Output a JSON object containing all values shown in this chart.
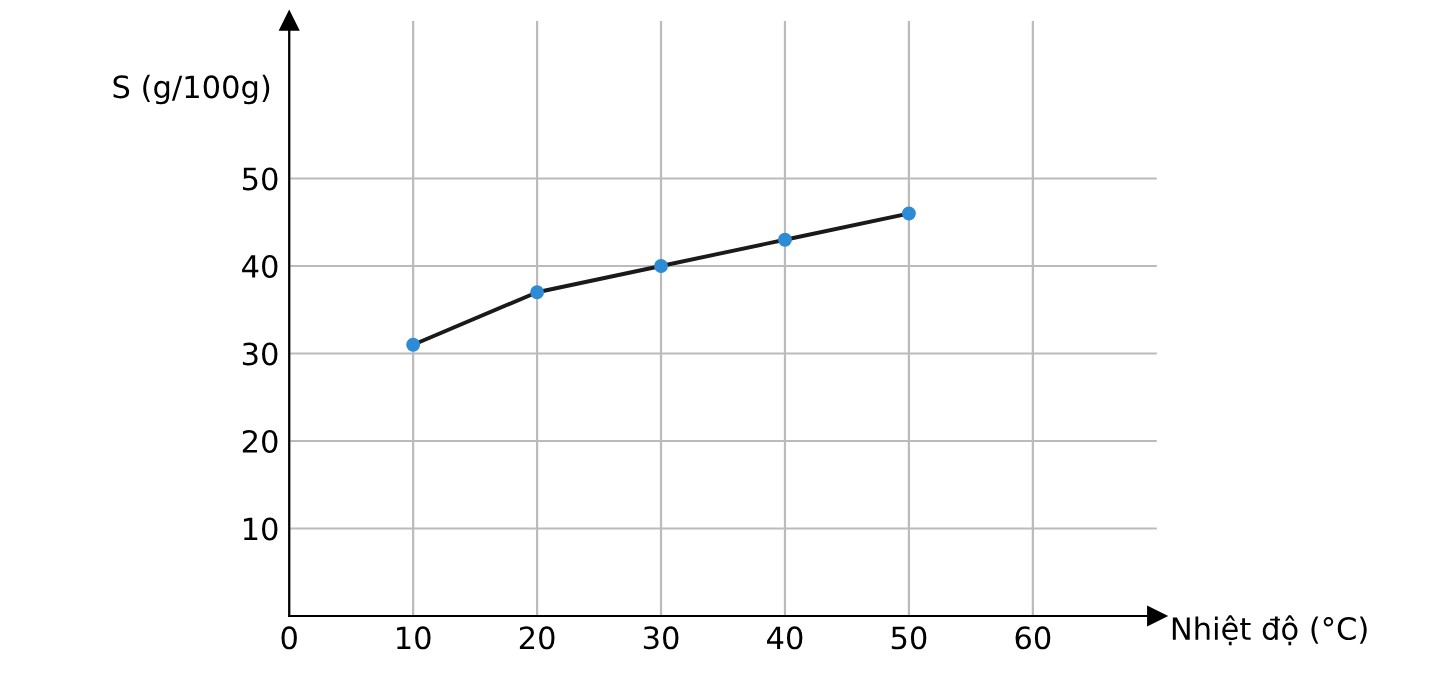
{
  "chart_data": {
    "type": "line",
    "xlabel": "Nhiệt độ (°C)",
    "ylabel": "S (g/100g)",
    "x": [
      10,
      20,
      30,
      40,
      50
    ],
    "series": [
      {
        "color": "#1a1a1a",
        "colors": [
          "#2e8bd6",
          "#2e8bd6",
          "#2e8bd6",
          "#2e8bd6",
          "#2e8bd6"
        ],
        "values": [
          31,
          37,
          40,
          43,
          46
        ]
      }
    ],
    "xlim": [
      0,
      70
    ],
    "ylim": [
      0,
      68
    ],
    "xticks": [
      0,
      10,
      20,
      30,
      40,
      50,
      60
    ],
    "yticks": [
      10,
      20,
      30,
      40,
      50
    ],
    "grid": true,
    "marker": "circle",
    "line_style": "solid"
  }
}
